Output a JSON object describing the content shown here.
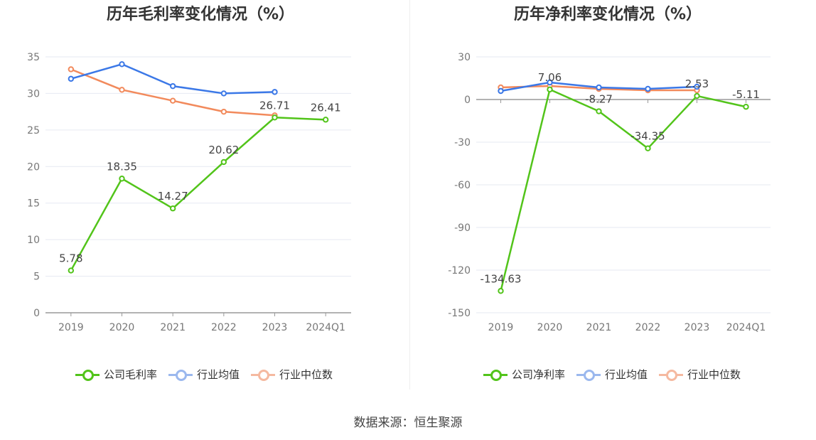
{
  "source": "数据来源：恒生聚源",
  "colors": {
    "company": "#52c41a",
    "avg": "#3b78e7",
    "median": "#f28a5c"
  },
  "chart_data": [
    {
      "type": "line",
      "title": "历年毛利率变化情况（%）",
      "categories": [
        "2019",
        "2020",
        "2021",
        "2022",
        "2023",
        "2024Q1"
      ],
      "ylim": [
        0,
        35
      ],
      "yticks": [
        0,
        5,
        10,
        15,
        20,
        25,
        30,
        35
      ],
      "series": [
        {
          "name": "公司毛利率",
          "values": [
            5.78,
            18.35,
            14.27,
            20.62,
            26.71,
            26.41
          ],
          "labels": [
            "5.78",
            "18.35",
            "14.27",
            "20.62",
            "26.71",
            "26.41"
          ]
        },
        {
          "name": "行业均值",
          "values": [
            32.0,
            34.0,
            31.0,
            30.0,
            30.2,
            null
          ]
        },
        {
          "name": "行业中位数",
          "values": [
            33.3,
            30.5,
            29.0,
            27.5,
            27.0,
            null
          ]
        }
      ],
      "legend": "bottom"
    },
    {
      "type": "line",
      "title": "历年净利率变化情况（%）",
      "categories": [
        "2019",
        "2020",
        "2021",
        "2022",
        "2023",
        "2024Q1"
      ],
      "ylim": [
        -150,
        30
      ],
      "yticks": [
        -150,
        -120,
        -90,
        -60,
        -30,
        0,
        30
      ],
      "series": [
        {
          "name": "公司净利率",
          "values": [
            -134.63,
            7.06,
            -8.27,
            -34.35,
            2.53,
            -5.11
          ],
          "labels": [
            "-134.63",
            "7.06",
            "-8.27",
            "-34.35",
            "2.53",
            "-5.11"
          ]
        },
        {
          "name": "行业均值",
          "values": [
            6.0,
            12.0,
            8.5,
            7.5,
            9.0,
            null
          ]
        },
        {
          "name": "行业中位数",
          "values": [
            8.5,
            9.5,
            7.5,
            6.5,
            6.5,
            null
          ]
        }
      ],
      "legend": "bottom"
    }
  ]
}
